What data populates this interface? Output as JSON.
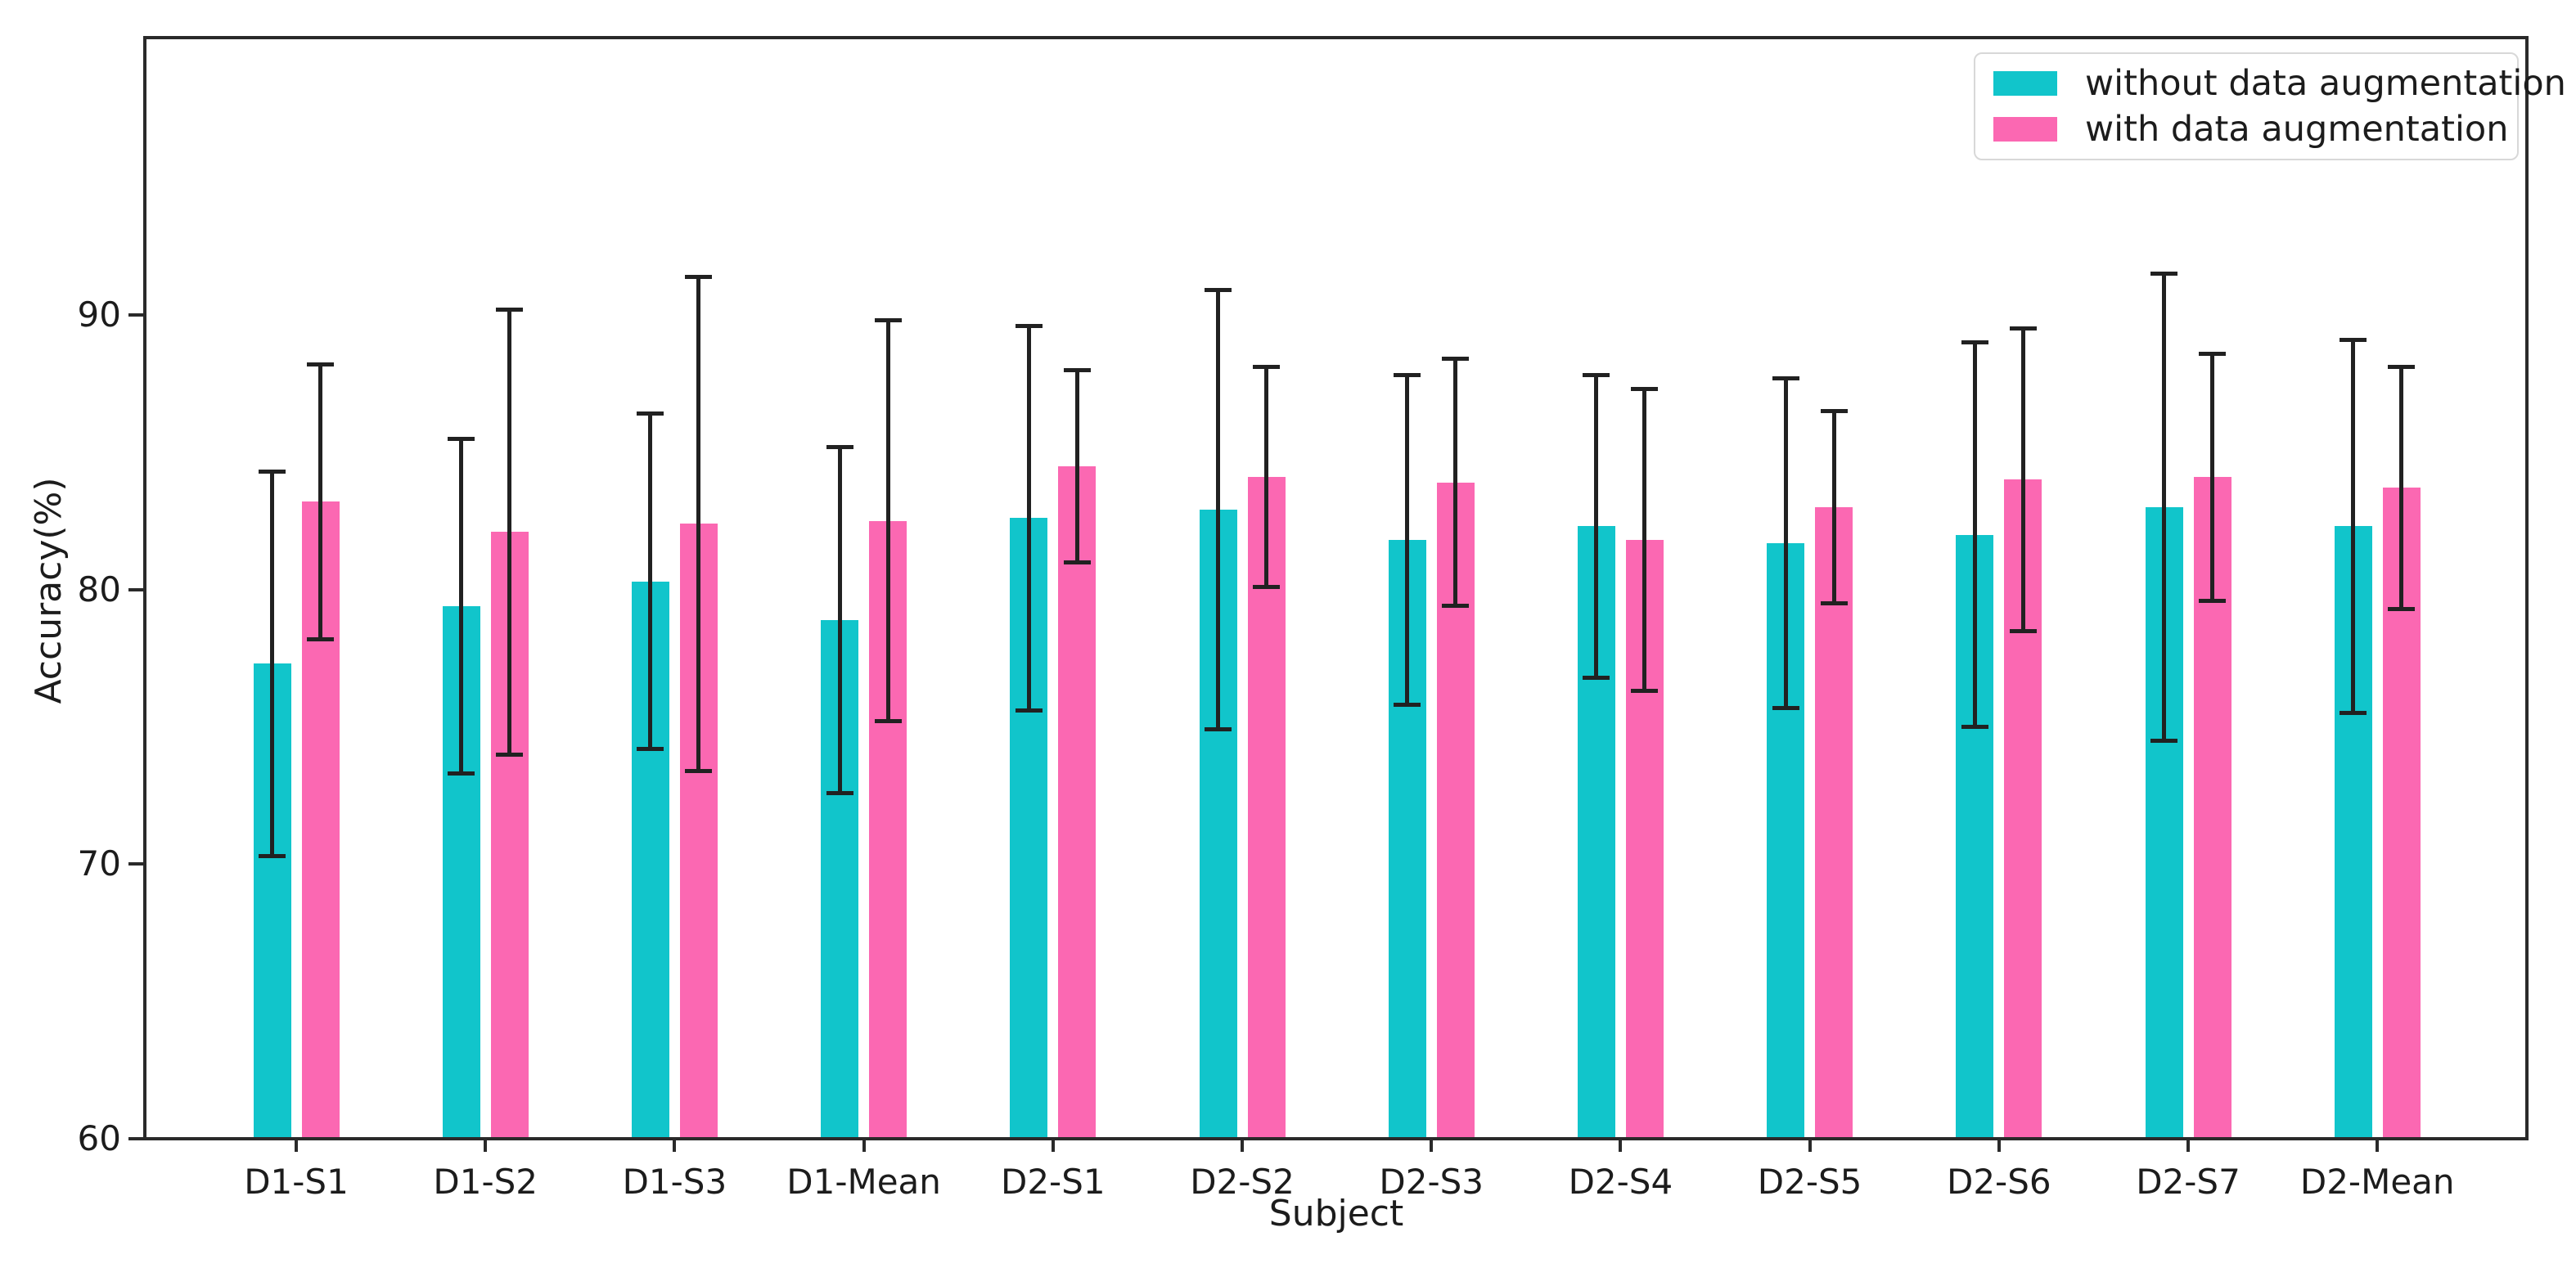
{
  "chart_data": {
    "type": "bar",
    "title": "",
    "xlabel": "Subject",
    "ylabel": "Accuracy(%)",
    "categories": [
      "D1-S1",
      "D1-S2",
      "D1-S3",
      "D1-Mean",
      "D2-S1",
      "D2-S2",
      "D2-S3",
      "D2-S4",
      "D2-S5",
      "D2-S6",
      "D2-S7",
      "D2-Mean"
    ],
    "series": [
      {
        "name": "without data augmentation",
        "color": "#11c5cb",
        "values": [
          77.3,
          79.4,
          80.3,
          78.9,
          82.6,
          82.9,
          81.8,
          82.3,
          81.7,
          82.0,
          83.0,
          82.3
        ],
        "errors": [
          7.0,
          6.1,
          6.1,
          6.3,
          7.0,
          8.0,
          6.0,
          5.5,
          6.0,
          7.0,
          8.5,
          6.8
        ]
      },
      {
        "name": "with data augmentation",
        "color": "#fb68b2",
        "values": [
          83.2,
          82.1,
          82.4,
          82.5,
          84.5,
          84.1,
          83.9,
          81.8,
          83.0,
          84.0,
          84.1,
          83.7
        ],
        "errors": [
          5.0,
          8.1,
          9.0,
          7.3,
          3.5,
          4.0,
          4.5,
          5.5,
          3.5,
          5.5,
          4.5,
          4.4
        ]
      }
    ],
    "ylim": [
      60,
      100.1
    ],
    "yticks": [
      60,
      70,
      80,
      90
    ],
    "grid": false,
    "legend_position": "upper right",
    "error_bar_color": "#212121",
    "background": "#ffffff"
  }
}
